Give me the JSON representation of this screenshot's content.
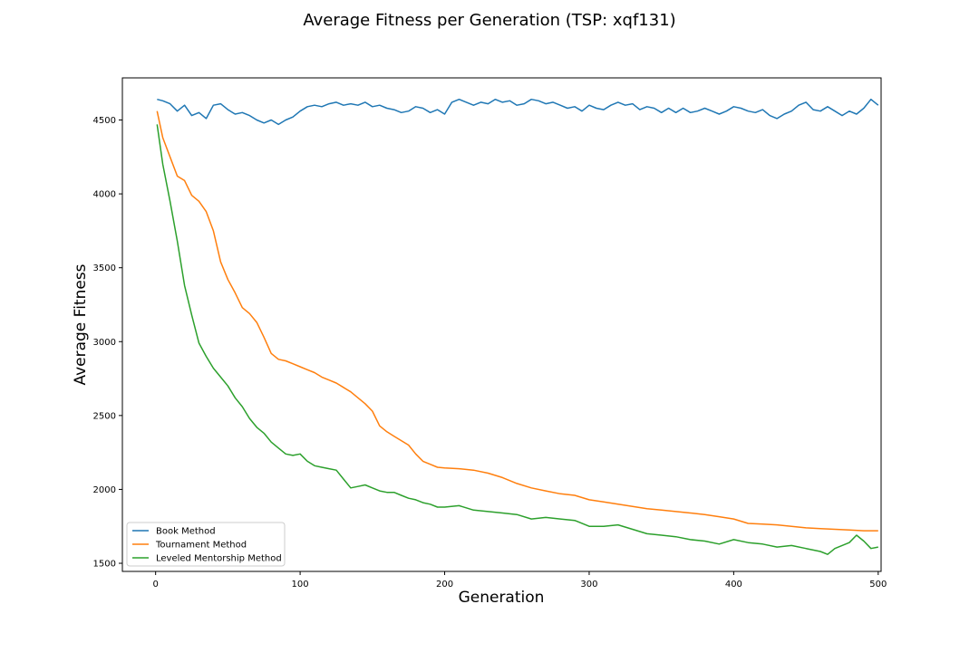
{
  "chart_data": {
    "type": "line",
    "title": "Average Fitness per Generation (TSP: xqf131)",
    "xlabel": "Generation",
    "ylabel": "Average Fitness",
    "xlim": [
      -23,
      502
    ],
    "ylim": [
      1445,
      4785
    ],
    "xticks": [
      0,
      100,
      200,
      300,
      400,
      500
    ],
    "yticks": [
      1500,
      2000,
      2500,
      3000,
      3500,
      4000,
      4500
    ],
    "grid": false,
    "legend_position": "lower-left",
    "series": [
      {
        "name": "Book Method",
        "color": "#1f77b4",
        "x": [
          1,
          5,
          10,
          15,
          20,
          25,
          30,
          35,
          40,
          45,
          50,
          55,
          60,
          65,
          70,
          75,
          80,
          85,
          90,
          95,
          100,
          105,
          110,
          115,
          120,
          125,
          130,
          135,
          140,
          145,
          150,
          155,
          160,
          165,
          170,
          175,
          180,
          185,
          190,
          195,
          200,
          205,
          210,
          215,
          220,
          225,
          230,
          235,
          240,
          245,
          250,
          255,
          260,
          265,
          270,
          275,
          280,
          285,
          290,
          295,
          300,
          305,
          310,
          315,
          320,
          325,
          330,
          335,
          340,
          345,
          350,
          355,
          360,
          365,
          370,
          375,
          380,
          385,
          390,
          395,
          400,
          405,
          410,
          415,
          420,
          425,
          430,
          435,
          440,
          445,
          450,
          455,
          460,
          465,
          470,
          475,
          480,
          485,
          490,
          495,
          500
        ],
        "values": [
          4640,
          4630,
          4610,
          4560,
          4600,
          4530,
          4550,
          4510,
          4600,
          4610,
          4570,
          4540,
          4550,
          4530,
          4500,
          4480,
          4500,
          4470,
          4500,
          4520,
          4560,
          4590,
          4600,
          4590,
          4610,
          4620,
          4600,
          4610,
          4600,
          4620,
          4590,
          4600,
          4580,
          4570,
          4550,
          4560,
          4590,
          4580,
          4550,
          4570,
          4540,
          4620,
          4640,
          4620,
          4600,
          4620,
          4610,
          4640,
          4620,
          4630,
          4600,
          4610,
          4640,
          4630,
          4610,
          4620,
          4600,
          4580,
          4590,
          4560,
          4600,
          4580,
          4570,
          4600,
          4620,
          4600,
          4610,
          4570,
          4590,
          4580,
          4550,
          4580,
          4550,
          4580,
          4550,
          4560,
          4580,
          4560,
          4540,
          4560,
          4590,
          4580,
          4560,
          4550,
          4570,
          4530,
          4510,
          4540,
          4560,
          4600,
          4620,
          4570,
          4560,
          4590,
          4560,
          4530,
          4560,
          4540,
          4580,
          4640,
          4600
        ]
      },
      {
        "name": "Tournament Method",
        "color": "#ff7f0e",
        "x": [
          1,
          5,
          10,
          15,
          20,
          25,
          30,
          35,
          40,
          45,
          50,
          55,
          60,
          65,
          70,
          75,
          80,
          85,
          90,
          95,
          100,
          105,
          110,
          115,
          120,
          125,
          130,
          135,
          140,
          145,
          150,
          155,
          160,
          165,
          170,
          175,
          180,
          185,
          190,
          195,
          200,
          210,
          220,
          230,
          240,
          250,
          260,
          270,
          280,
          290,
          300,
          310,
          320,
          330,
          340,
          350,
          360,
          370,
          380,
          390,
          400,
          410,
          420,
          430,
          440,
          450,
          460,
          470,
          480,
          490,
          500
        ],
        "values": [
          4560,
          4380,
          4250,
          4120,
          4090,
          3990,
          3950,
          3880,
          3750,
          3540,
          3420,
          3330,
          3230,
          3190,
          3130,
          3030,
          2920,
          2880,
          2870,
          2850,
          2830,
          2810,
          2790,
          2760,
          2740,
          2720,
          2690,
          2660,
          2620,
          2580,
          2530,
          2430,
          2390,
          2360,
          2330,
          2300,
          2240,
          2190,
          2170,
          2150,
          2145,
          2140,
          2130,
          2110,
          2080,
          2040,
          2010,
          1990,
          1970,
          1960,
          1930,
          1915,
          1900,
          1885,
          1870,
          1860,
          1850,
          1840,
          1830,
          1815,
          1800,
          1770,
          1765,
          1760,
          1750,
          1740,
          1735,
          1730,
          1725,
          1720,
          1720
        ]
      },
      {
        "name": "Leveled Mentorship Method",
        "color": "#2ca02c",
        "x": [
          1,
          5,
          10,
          15,
          20,
          25,
          30,
          35,
          40,
          45,
          50,
          55,
          60,
          65,
          70,
          75,
          80,
          85,
          90,
          95,
          100,
          105,
          110,
          115,
          120,
          125,
          130,
          135,
          140,
          145,
          150,
          155,
          160,
          165,
          170,
          175,
          180,
          185,
          190,
          195,
          200,
          210,
          220,
          230,
          240,
          250,
          260,
          270,
          280,
          290,
          300,
          310,
          320,
          330,
          340,
          350,
          360,
          370,
          380,
          390,
          400,
          410,
          420,
          430,
          440,
          450,
          460,
          465,
          470,
          480,
          485,
          490,
          495,
          500
        ],
        "values": [
          4470,
          4200,
          3950,
          3680,
          3380,
          3180,
          2990,
          2900,
          2820,
          2760,
          2700,
          2620,
          2560,
          2480,
          2420,
          2380,
          2320,
          2280,
          2240,
          2230,
          2240,
          2190,
          2160,
          2150,
          2140,
          2130,
          2070,
          2010,
          2020,
          2030,
          2010,
          1990,
          1980,
          1980,
          1960,
          1940,
          1930,
          1910,
          1900,
          1880,
          1880,
          1890,
          1860,
          1850,
          1840,
          1830,
          1800,
          1810,
          1800,
          1790,
          1750,
          1750,
          1760,
          1730,
          1700,
          1690,
          1680,
          1660,
          1650,
          1630,
          1660,
          1640,
          1630,
          1610,
          1620,
          1600,
          1580,
          1560,
          1600,
          1640,
          1690,
          1650,
          1600,
          1610
        ]
      }
    ]
  }
}
